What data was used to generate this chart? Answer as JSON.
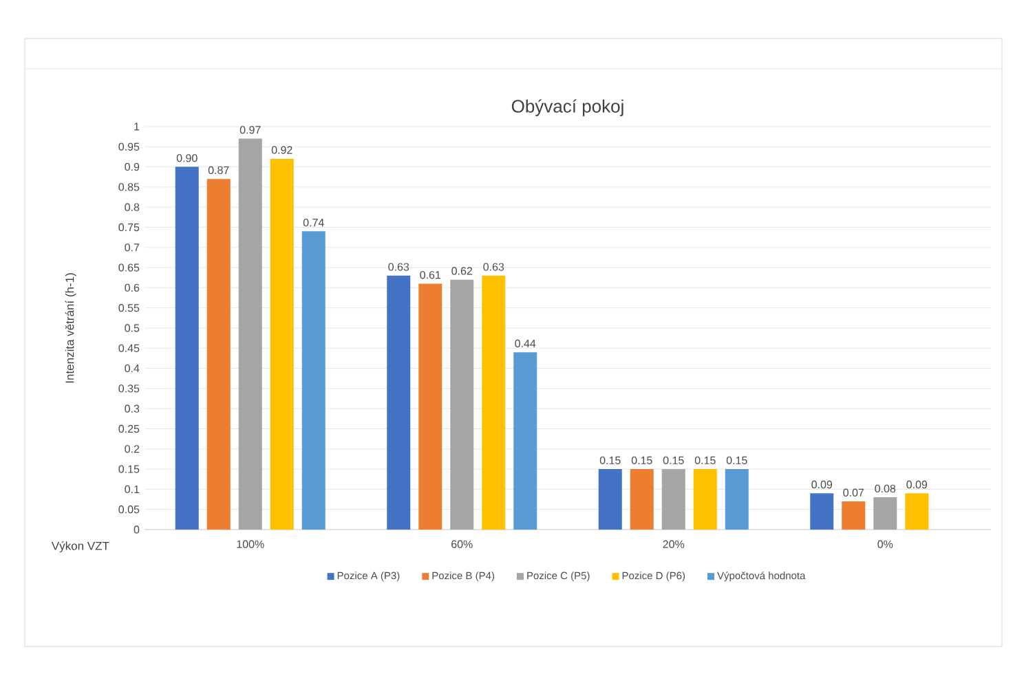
{
  "chart_data": {
    "type": "bar",
    "title": "Obývací pokoj",
    "xlabel": "Výkon VZT",
    "ylabel": "Intenzita větrání (h-1)",
    "categories": [
      "100%",
      "60%",
      "20%",
      "0%"
    ],
    "series": [
      {
        "name": "Pozice A (P3)",
        "color": "#4472c4",
        "values": [
          0.9,
          0.63,
          0.15,
          0.09
        ],
        "value_labels": [
          "0.90",
          "0.63",
          "0.15",
          "0.09"
        ]
      },
      {
        "name": "Pozice B (P4)",
        "color": "#ed7d31",
        "values": [
          0.87,
          0.61,
          0.15,
          0.07
        ],
        "value_labels": [
          "0.87",
          "0.61",
          "0.15",
          "0.07"
        ]
      },
      {
        "name": "Pozice C (P5)",
        "color": "#a5a5a5",
        "values": [
          0.97,
          0.62,
          0.15,
          0.08
        ],
        "value_labels": [
          "0.97",
          "0.62",
          "0.15",
          "0.08"
        ]
      },
      {
        "name": "Pozice D (P6)",
        "color": "#ffc000",
        "values": [
          0.92,
          0.63,
          0.15,
          0.09
        ],
        "value_labels": [
          "0.92",
          "0.63",
          "0.15",
          "0.09"
        ]
      },
      {
        "name": "Výpočtová hodnota",
        "color": "#5b9bd5",
        "values": [
          0.74,
          0.44,
          0.15,
          null
        ],
        "value_labels": [
          "0.74",
          "0.44",
          "0.15",
          null
        ]
      }
    ],
    "ylim": [
      0,
      1
    ],
    "yticks": [
      0,
      0.05,
      0.1,
      0.15,
      0.2,
      0.25,
      0.3,
      0.35,
      0.4,
      0.45,
      0.5,
      0.55,
      0.6,
      0.65,
      0.7,
      0.75,
      0.8,
      0.85,
      0.9,
      0.95,
      1
    ],
    "grid": "y",
    "legend": "bottom"
  }
}
